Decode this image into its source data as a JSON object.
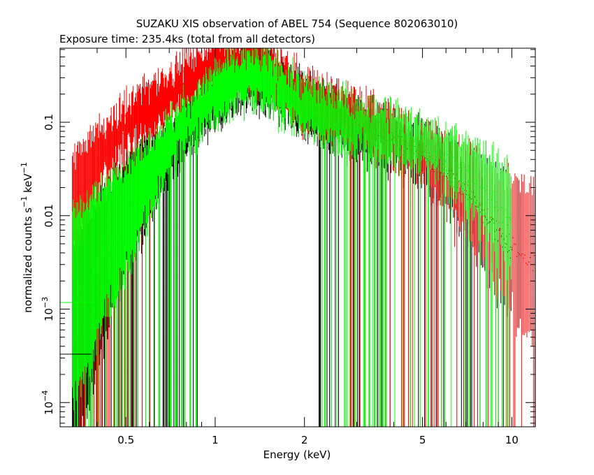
{
  "chart_data": {
    "type": "scatter",
    "title": "SUZAKU XIS observation of ABEL 754 (Sequence 802063010)",
    "subtitle": "Exposure time: 235.4ks (total from all detectors)",
    "xlabel": "Energy (keV)",
    "ylabel": "normalized counts s^-1 keV^-1",
    "x_scale": "log",
    "y_scale": "log",
    "xlim": [
      0.3,
      12
    ],
    "ylim": [
      5.5e-05,
      0.62
    ],
    "x_ticks": [
      {
        "value": 0.5,
        "label": "0.5"
      },
      {
        "value": 1,
        "label": "1"
      },
      {
        "value": 2,
        "label": "2"
      },
      {
        "value": 5,
        "label": "5"
      },
      {
        "value": 10,
        "label": "10"
      }
    ],
    "y_ticks": [
      {
        "value": 0.1,
        "label": "0.1"
      },
      {
        "value": 0.01,
        "label": "0.01"
      },
      {
        "value": 0.001,
        "label": "10",
        "exp": "−3"
      },
      {
        "value": 0.0001,
        "label": "10",
        "exp": "−4"
      }
    ],
    "series": [
      {
        "color": "#000000",
        "points": [
          [
            0.33,
            0.00033
          ],
          [
            0.5,
            0.012
          ],
          [
            0.8,
            0.08
          ],
          [
            1.0,
            0.2
          ],
          [
            1.3,
            0.3
          ],
          [
            1.6,
            0.26
          ],
          [
            2.0,
            0.14
          ],
          [
            3.0,
            0.085
          ],
          [
            5.0,
            0.045
          ],
          [
            7.0,
            0.018
          ],
          [
            10.0,
            0.004
          ]
        ]
      },
      {
        "color": "#ff0000",
        "points": [
          [
            0.33,
            0.012
          ],
          [
            0.4,
            0.04
          ],
          [
            0.5,
            0.09
          ],
          [
            0.7,
            0.2
          ],
          [
            1.0,
            0.42
          ],
          [
            1.3,
            0.45
          ],
          [
            1.6,
            0.32
          ],
          [
            2.0,
            0.17
          ],
          [
            3.0,
            0.11
          ],
          [
            5.0,
            0.05
          ],
          [
            7.0,
            0.018
          ],
          [
            10.0,
            0.005
          ],
          [
            12.0,
            0.003
          ]
        ]
      },
      {
        "color": "#00ff00",
        "points": [
          [
            0.33,
            0.001
          ],
          [
            0.5,
            0.01
          ],
          [
            0.7,
            0.06
          ],
          [
            1.0,
            0.2
          ],
          [
            1.3,
            0.3
          ],
          [
            1.6,
            0.25
          ],
          [
            2.0,
            0.14
          ],
          [
            3.0,
            0.09
          ],
          [
            5.0,
            0.06
          ],
          [
            7.0,
            0.03
          ],
          [
            10.0,
            0.009
          ]
        ]
      }
    ]
  }
}
